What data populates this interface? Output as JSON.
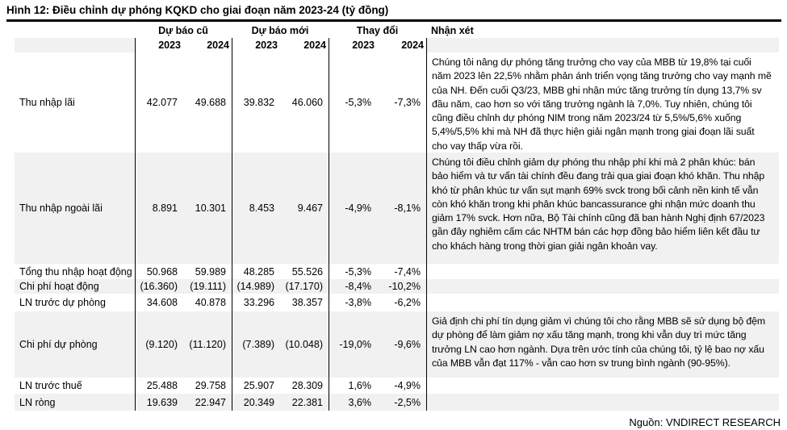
{
  "title": "Hình 12: Điều chỉnh dự phóng KQKD cho giai đoạn năm 2023-24 (tỷ đồng)",
  "colors": {
    "row_shade": "#f1f1f1",
    "text": "#000000"
  },
  "table": {
    "header": {
      "groups": {
        "old": "Dự báo cũ",
        "new": "Dự báo mới",
        "change": "Thay đổi",
        "comment": "Nhận xét"
      },
      "years": [
        "2023",
        "2024",
        "2023",
        "2024",
        "2023",
        "2024"
      ]
    },
    "rows": [
      {
        "label": "Thu nhập lãi",
        "old_2023": "42.077",
        "old_2024": "49.688",
        "new_2023": "39.832",
        "new_2024": "46.060",
        "chg_2023": "-5,3%",
        "chg_2024": "-7,3%",
        "comment": "Chúng tôi nâng dự phóng tăng trưởng cho vay của MBB từ 19,8% tại cuối năm 2023 lên 22,5% nhằm phản ánh triển vọng tăng trưởng cho vay mạnh mẽ của NH. Đến cuối Q3/23, MBB ghi nhận mức tăng trưởng tín dụng 13,7% sv đầu năm, cao hơn so với tăng trưởng ngành là 7,0%. Tuy nhiên, chúng tôi cũng điều chỉnh dự phóng NIM trong năm 2023/24 từ 5,5%/5,6% xuống 5,4%/5,5% khi mà NH đã thực hiện giải ngân mạnh trong giai đoạn lãi suất cho vay thấp vừa rồi."
      },
      {
        "label": "Thu nhập ngoài lãi",
        "old_2023": "8.891",
        "old_2024": "10.301",
        "new_2023": "8.453",
        "new_2024": "9.467",
        "chg_2023": "-4,9%",
        "chg_2024": "-8,1%",
        "comment": "Chúng tôi điều chỉnh giảm dự phóng thu nhập phí khi mà 2 phân khúc: bán bảo hiểm và tư vấn tài chính đều đang trải qua giai đoạn khó khăn. Thu nhập khó từ phân khúc tư vấn sụt mạnh 69% svck trong bối cảnh nền kinh tế vẫn còn khó khăn trong khi phân khúc bancassurance ghi nhận mức doanh thu giảm 17% svck. Hơn nữa, Bộ Tài chính cũng đã ban hành Nghị định 67/2023 gần đây nghiêm cấm các NHTM bán các hợp đồng bảo hiểm liên kết đầu tư cho khách hàng trong thời gian giải ngân khoản vay."
      },
      {
        "label": "Tổng thu nhập hoạt động",
        "old_2023": "50.968",
        "old_2024": "59.989",
        "new_2023": "48.285",
        "new_2024": "55.526",
        "chg_2023": "-5,3%",
        "chg_2024": "-7,4%",
        "comment": ""
      },
      {
        "label": "Chi phí hoạt động",
        "old_2023": "(16.360)",
        "old_2024": "(19.111)",
        "new_2023": "(14.989)",
        "new_2024": "(17.170)",
        "chg_2023": "-8,4%",
        "chg_2024": "-10,2%",
        "comment": ""
      },
      {
        "label": "LN trước dự phòng",
        "old_2023": "34.608",
        "old_2024": "40.878",
        "new_2023": "33.296",
        "new_2024": "38.357",
        "chg_2023": "-3,8%",
        "chg_2024": "-6,2%",
        "comment": ""
      },
      {
        "label": "Chi phí dự phòng",
        "old_2023": "(9.120)",
        "old_2024": "(11.120)",
        "new_2023": "(7.389)",
        "new_2024": "(10.048)",
        "chg_2023": "-19,0%",
        "chg_2024": "-9,6%",
        "comment": "Giả định chi phí tín dụng giảm vì chúng tôi cho rằng MBB sẽ sử dụng bộ đệm dự phòng để làm giảm nợ xấu tăng mạnh, trong khi vẫn duy trì mức tăng trưởng LN cao hơn ngành. Dựa trên ước tính của chúng tôi, tỷ lệ bao nợ xấu của MBB vẫn đạt 117% - vẫn cao hơn sv trung bình ngành (90-95%)."
      },
      {
        "label": "LN trước thuế",
        "old_2023": "25.488",
        "old_2024": "29.758",
        "new_2023": "25.907",
        "new_2024": "28.309",
        "chg_2023": "1,6%",
        "chg_2024": "-4,9%",
        "comment": ""
      },
      {
        "label": "LN ròng",
        "old_2023": "19.639",
        "old_2024": "22.947",
        "new_2023": "20.349",
        "new_2024": "22.381",
        "chg_2023": "3,6%",
        "chg_2024": "-2,5%",
        "comment": ""
      }
    ]
  },
  "source_note": "Nguồn: VNDIRECT RESEARCH"
}
